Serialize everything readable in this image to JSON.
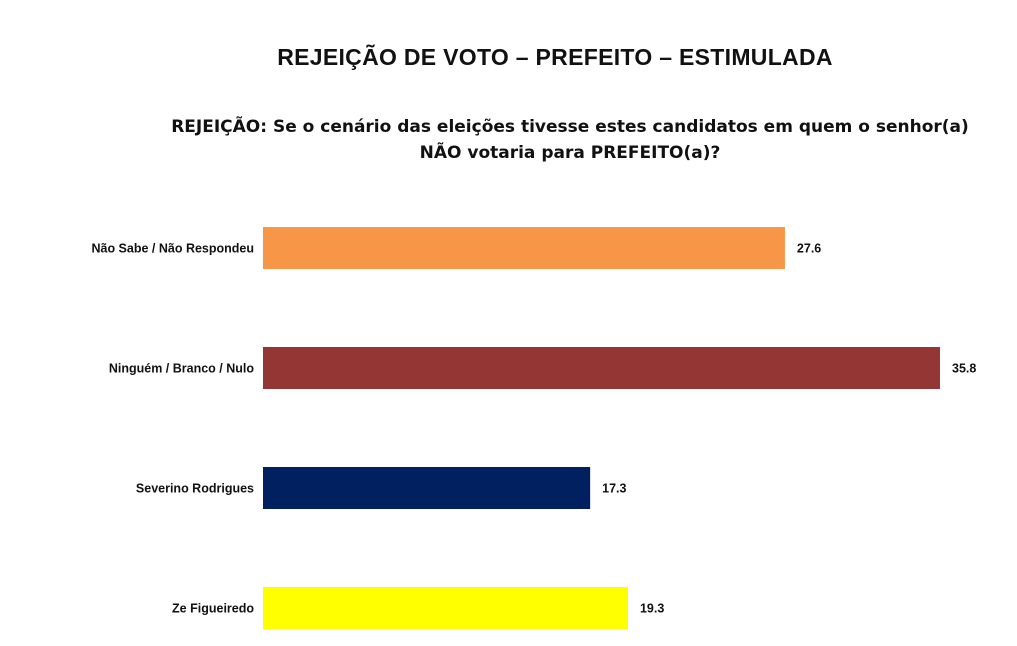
{
  "header": {
    "title": "REJEIÇÃO DE VOTO – PREFEITO – ESTIMULADA",
    "subtitle": "REJEIÇÃO: Se o cenário das eleições tivesse estes candidatos em quem o senhor(a) NÃO votaria para PREFEITO(a)?"
  },
  "chart_data": {
    "type": "bar",
    "orientation": "horizontal",
    "title": "REJEIÇÃO DE VOTO – PREFEITO – ESTIMULADA",
    "subtitle": "REJEIÇÃO: Se o cenário das eleições tivesse estes candidatos em quem o senhor(a) NÃO votaria para PREFEITO(a)?",
    "categories": [
      "Não Sabe / Não Respondeu",
      "Ninguém / Branco / Nulo",
      "Severino Rodrigues",
      "Ze Figueiredo"
    ],
    "values": [
      27.6,
      35.8,
      17.3,
      19.3
    ],
    "value_labels": [
      "27.6",
      "35.8",
      "17.3",
      "19.3"
    ],
    "colors": [
      "#F79646",
      "#943634",
      "#002060",
      "#FFFF00"
    ],
    "xlim": [
      0,
      35.8
    ],
    "grid": false,
    "legend": "none"
  }
}
